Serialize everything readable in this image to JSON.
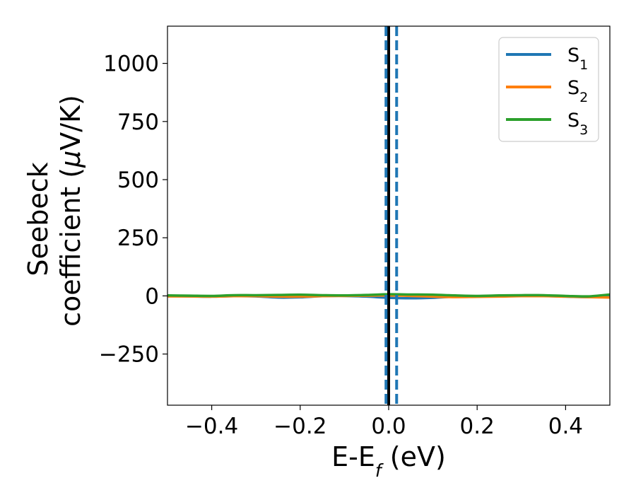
{
  "chart_data": {
    "type": "line",
    "title": "",
    "xlabel": "E-E",
    "xlabel_sub": "f",
    "xlabel_unit": " (eV)",
    "ylabel_line1": "Seebeck",
    "ylabel_line2": "coefficient  (",
    "ylabel_mu": "μ",
    "ylabel_line2_end": "V/K)",
    "xlim": [
      -0.5,
      0.5
    ],
    "ylim": [
      -470,
      1160
    ],
    "x_ticks": [
      -0.4,
      -0.2,
      0.0,
      0.2,
      0.4
    ],
    "x_tick_labels": [
      "−0.4",
      "−0.2",
      "0.0",
      "0.2",
      "0.4"
    ],
    "y_ticks": [
      -250,
      0,
      250,
      500,
      750,
      1000
    ],
    "y_tick_labels": [
      "−250",
      "0",
      "250",
      "500",
      "750",
      "1000"
    ],
    "grid": false,
    "legend_position": "top-right",
    "series": [
      {
        "name": "S",
        "subscript": "1",
        "color": "#1f77b4",
        "x": [
          -0.5,
          -0.45,
          -0.4,
          -0.35,
          -0.3,
          -0.25,
          -0.2,
          -0.15,
          -0.1,
          -0.05,
          0.0,
          0.05,
          0.1,
          0.15,
          0.2,
          0.25,
          0.3,
          0.35,
          0.4,
          0.45,
          0.5
        ],
        "values": [
          0,
          -2,
          -3,
          -1,
          -2,
          -7,
          -6,
          -1,
          0,
          -3,
          -8,
          -10,
          -8,
          -3,
          -1,
          0,
          1,
          0,
          -3,
          -5,
          -3
        ]
      },
      {
        "name": "S",
        "subscript": "2",
        "color": "#ff7f0e",
        "x": [
          -0.5,
          -0.45,
          -0.4,
          -0.35,
          -0.3,
          -0.25,
          -0.2,
          -0.15,
          -0.1,
          -0.05,
          0.0,
          0.05,
          0.1,
          0.15,
          0.2,
          0.25,
          0.3,
          0.35,
          0.4,
          0.45,
          0.5
        ],
        "values": [
          -2,
          -2,
          -3,
          -1,
          -1,
          -3,
          -3,
          -1,
          0,
          1,
          2,
          0,
          -3,
          -5,
          -4,
          -3,
          -1,
          -1,
          -3,
          -5,
          -7
        ]
      },
      {
        "name": "S",
        "subscript": "3",
        "color": "#2ca02c",
        "x": [
          -0.5,
          -0.45,
          -0.4,
          -0.35,
          -0.3,
          -0.25,
          -0.2,
          -0.15,
          -0.1,
          -0.05,
          0.0,
          0.05,
          0.1,
          0.15,
          0.2,
          0.25,
          0.3,
          0.35,
          0.4,
          0.45,
          0.5
        ],
        "values": [
          2,
          1,
          0,
          3,
          3,
          4,
          5,
          3,
          2,
          4,
          7,
          6,
          5,
          2,
          0,
          2,
          3,
          3,
          0,
          -2,
          6
        ]
      }
    ],
    "vertical_lines": [
      {
        "x": 0.0,
        "style": "solid",
        "color": "#000000"
      },
      {
        "x": -0.006,
        "style": "dashed",
        "color": "#1f77b4"
      },
      {
        "x": 0.018,
        "style": "dashed",
        "color": "#1f77b4"
      }
    ]
  }
}
